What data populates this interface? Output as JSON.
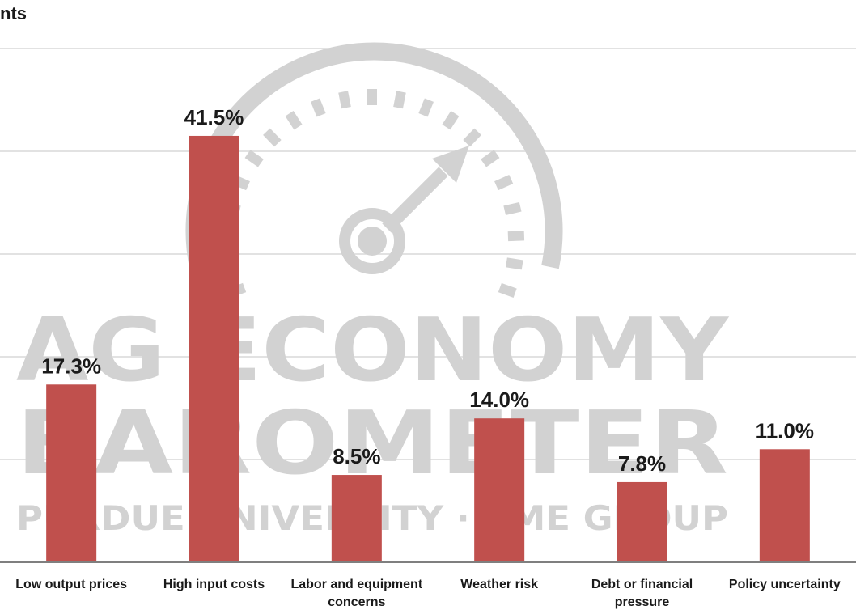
{
  "chart_data": {
    "type": "bar",
    "title": "nts",
    "categories": [
      "Low output prices",
      "High input costs",
      "Labor and equipment concerns",
      "Weather risk",
      "Debt or financial pressure",
      "Policy uncertainty"
    ],
    "category_lines": [
      [
        "Low output prices"
      ],
      [
        "High input costs"
      ],
      [
        "Labor and equipment",
        "concerns"
      ],
      [
        "Weather risk"
      ],
      [
        "Debt or financial",
        "pressure"
      ],
      [
        "Policy uncertainty"
      ]
    ],
    "values": [
      17.3,
      41.5,
      8.5,
      14.0,
      7.8,
      11.0
    ],
    "value_labels": [
      "17.3%",
      "41.5%",
      "8.5%",
      "14.0%",
      "7.8%",
      "11.0%"
    ],
    "ylim": [
      0,
      50
    ],
    "grid": true,
    "bar_color": "#c0504d"
  },
  "watermark": {
    "line1": "AG ECONOMY",
    "line2": "BAROMETER",
    "line3": "PURDUE UNIVERSITY · CME GROUP",
    "color": "#cfcfcf"
  }
}
